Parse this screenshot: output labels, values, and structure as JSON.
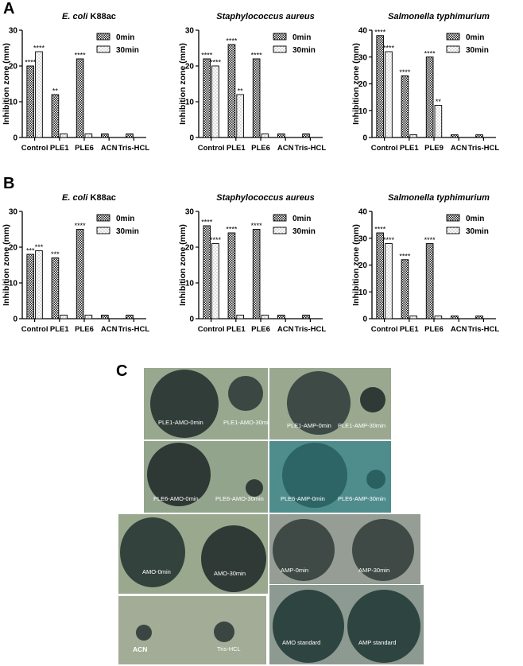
{
  "panels": {
    "a_letter": "A",
    "b_letter": "B",
    "c_letter": "C"
  },
  "chart_data": [
    {
      "type": "bar",
      "panel": "A",
      "title": "E. coli K88ac",
      "title_italic_part": "E. coli",
      "title_rest": " K88ac",
      "ylabel": "Inhibition zone (mm)",
      "xlabel": "",
      "ylim": [
        0,
        30
      ],
      "yticks": [
        0,
        10,
        20,
        30
      ],
      "categories": [
        "Control",
        "PLE1",
        "PLE6",
        "ACN",
        "Tris-HCL"
      ],
      "series": [
        {
          "name": "0min",
          "values": [
            20,
            12,
            22,
            1,
            1
          ]
        },
        {
          "name": "30min",
          "values": [
            24,
            1,
            1,
            0,
            0
          ]
        }
      ],
      "annotations": [
        [
          "****",
          "****"
        ],
        [
          "**",
          ""
        ],
        [
          "****",
          ""
        ],
        [
          "",
          ""
        ],
        [
          "",
          ""
        ]
      ],
      "legend": "top-right"
    },
    {
      "type": "bar",
      "panel": "A",
      "title": "Staphylococcus aureus",
      "title_italic_part": "Staphylococcus aureus",
      "title_rest": "",
      "ylabel": "Inhibition zone (mm)",
      "xlabel": "",
      "ylim": [
        0,
        30
      ],
      "yticks": [
        0,
        10,
        20,
        30
      ],
      "categories": [
        "Control",
        "PLE1",
        "PLE6",
        "ACN",
        "Tris-HCL"
      ],
      "series": [
        {
          "name": "0min",
          "values": [
            22,
            26,
            22,
            1,
            1
          ]
        },
        {
          "name": "30min",
          "values": [
            20,
            12,
            1,
            0,
            0
          ]
        }
      ],
      "annotations": [
        [
          "****",
          "****"
        ],
        [
          "****",
          "**"
        ],
        [
          "****",
          ""
        ],
        [
          "",
          ""
        ],
        [
          "",
          ""
        ]
      ],
      "legend": "top-right"
    },
    {
      "type": "bar",
      "panel": "A",
      "title": "Salmonella typhimurium",
      "title_italic_part": "Salmonella typhimurium",
      "title_rest": "",
      "ylabel": "Inhibition zone (mm)",
      "xlabel": "",
      "ylim": [
        0,
        40
      ],
      "yticks": [
        0,
        10,
        20,
        30,
        40
      ],
      "categories": [
        "Control",
        "PLE1",
        "PLE9",
        "ACN",
        "Tris-HCL"
      ],
      "series": [
        {
          "name": "0min",
          "values": [
            38,
            23,
            30,
            1,
            1
          ]
        },
        {
          "name": "30min",
          "values": [
            32,
            1,
            12,
            0,
            0
          ]
        }
      ],
      "annotations": [
        [
          "****",
          "****"
        ],
        [
          "****",
          ""
        ],
        [
          "****",
          "**"
        ],
        [
          "",
          ""
        ],
        [
          "",
          ""
        ]
      ],
      "legend": "top-right"
    },
    {
      "type": "bar",
      "panel": "B",
      "title": "E. coli K88ac",
      "title_italic_part": "E. coli",
      "title_rest": " K88ac",
      "ylabel": "Inhibition zone (mm)",
      "xlabel": "",
      "ylim": [
        0,
        30
      ],
      "yticks": [
        0,
        10,
        20,
        30
      ],
      "categories": [
        "Control",
        "PLE1",
        "PLE6",
        "ACN",
        "Tris-HCL"
      ],
      "series": [
        {
          "name": "0min",
          "values": [
            18,
            17,
            25,
            1,
            1
          ]
        },
        {
          "name": "30min",
          "values": [
            19,
            1,
            1,
            0,
            0
          ]
        }
      ],
      "annotations": [
        [
          "***",
          "***"
        ],
        [
          "***",
          ""
        ],
        [
          "****",
          ""
        ],
        [
          "",
          ""
        ],
        [
          "",
          ""
        ]
      ],
      "legend": "top-right"
    },
    {
      "type": "bar",
      "panel": "B",
      "title": "Staphylococcus aureus",
      "title_italic_part": "Staphylococcus aureus",
      "title_rest": "",
      "ylabel": "Inhibition zone (mm)",
      "xlabel": "",
      "ylim": [
        0,
        30
      ],
      "yticks": [
        0,
        10,
        20,
        30
      ],
      "categories": [
        "Control",
        "PLE1",
        "PLE6",
        "ACN",
        "Tris-HCL"
      ],
      "series": [
        {
          "name": "0min",
          "values": [
            26,
            24,
            25,
            1,
            1
          ]
        },
        {
          "name": "30min",
          "values": [
            21,
            1,
            1,
            0,
            0
          ]
        }
      ],
      "annotations": [
        [
          "****",
          "****"
        ],
        [
          "****",
          ""
        ],
        [
          "****",
          ""
        ],
        [
          "",
          ""
        ],
        [
          "",
          ""
        ]
      ],
      "legend": "top-right"
    },
    {
      "type": "bar",
      "panel": "B",
      "title": "Salmonella typhimurium",
      "title_italic_part": "Salmonella typhimurium",
      "title_rest": "",
      "ylabel": "Inhibition zone (mm)",
      "xlabel": "",
      "ylim": [
        0,
        40
      ],
      "yticks": [
        0,
        10,
        20,
        30,
        40
      ],
      "categories": [
        "Control",
        "PLE1",
        "PLE6",
        "ACN",
        "Tris-HCL"
      ],
      "series": [
        {
          "name": "0min",
          "values": [
            32,
            22,
            28,
            1,
            1
          ]
        },
        {
          "name": "30min",
          "values": [
            28,
            1,
            1,
            0,
            0
          ]
        }
      ],
      "annotations": [
        [
          "****",
          "****"
        ],
        [
          "****",
          ""
        ],
        [
          "****",
          ""
        ],
        [
          "",
          ""
        ],
        [
          "",
          ""
        ]
      ],
      "legend": "top-right"
    }
  ],
  "photo_labels": {
    "ple1_amo_0": "PLE1-AMO-0min",
    "ple1_amo_30": "PLE1-AMO-30min",
    "ple1_amp_0": "PLE1-AMP-0min",
    "ple1_amp_30": "PLE1-AMP-30min",
    "ple6_amo_0": "PLE6-AMO-0min",
    "ple6_amo_30": "PLE6-AMO-30min",
    "ple6_amp_0": "PLE6-AMP-0min",
    "ple6_amp_30": "PLE6-AMP-30min",
    "amo_0": "AMO-0min",
    "amo_30": "AMO-30min",
    "amp_0": "AMP-0min",
    "amp_30": "AMP-30min",
    "acn": "ACN",
    "tris": "Tris-HCL",
    "amo_std": "AMO standard",
    "amp_std": "AMP  standard"
  },
  "colors": {
    "plate_light": "#9aa88a",
    "plate_teal": "#4e8b8c",
    "zone_dark": "#2f3a36",
    "zone_teal": "#2d6566"
  }
}
